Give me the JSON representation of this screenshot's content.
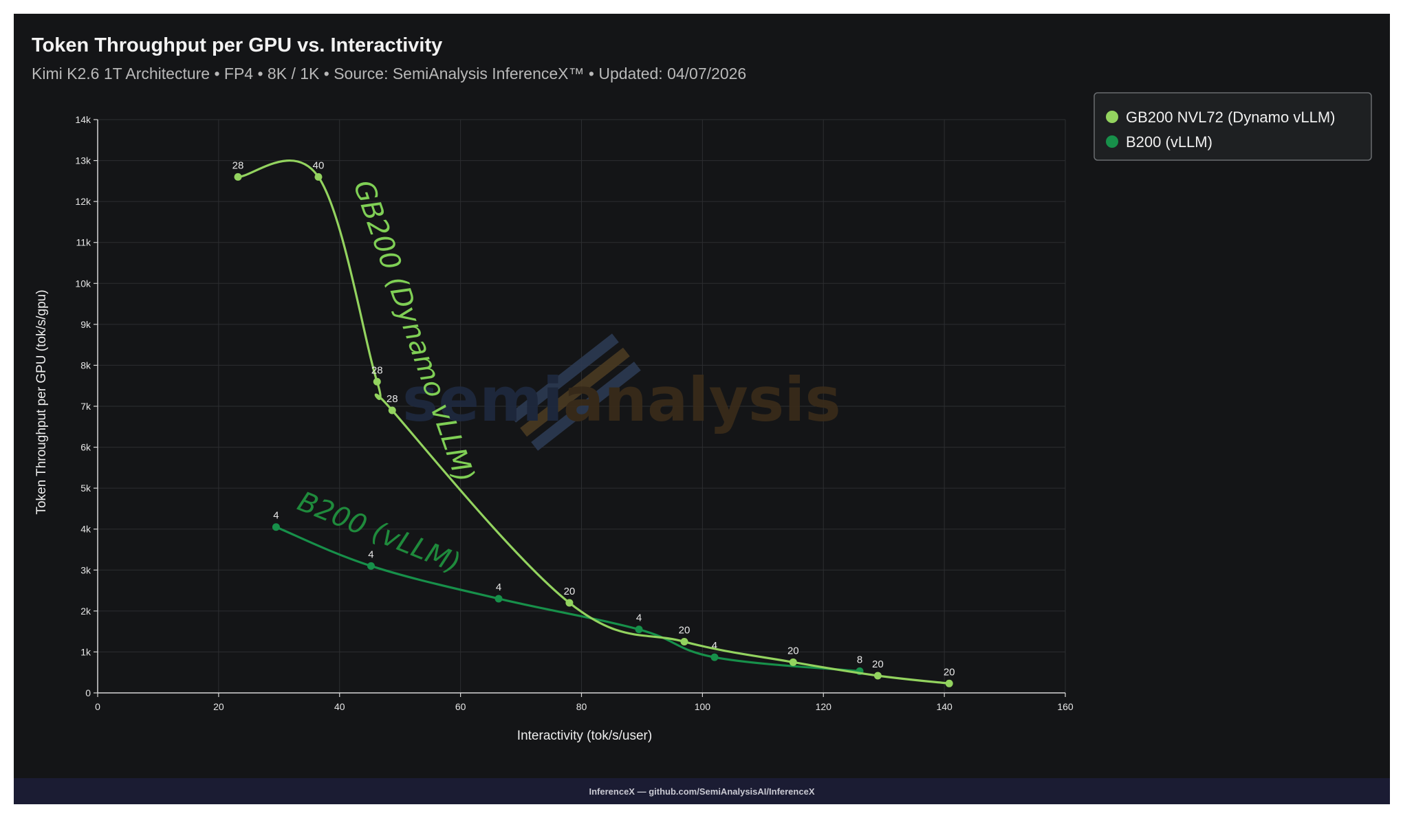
{
  "header": {
    "title": "Token Throughput per GPU vs. Interactivity",
    "subtitle": "Kimi K2.6 1T Architecture • FP4 • 8K / 1K • Source: SemiAnalysis InferenceX™ • Updated: 04/07/2026"
  },
  "footer": {
    "text": "InferenceX — github.com/SemiAnalysisAI/InferenceX"
  },
  "watermark": {
    "text_a": "semi",
    "text_b": "analysis"
  },
  "annotations": [
    {
      "text": "GB200 (Dynamo vLLM)",
      "color": "#7fcf55"
    },
    {
      "text": "B200 (vLLM)",
      "color": "#1f8a3c"
    }
  ],
  "chart_data": {
    "type": "line",
    "title": "Token Throughput per GPU vs. Interactivity",
    "xlabel": "Interactivity (tok/s/user)",
    "ylabel": "Token Throughput per GPU (tok/s/gpu)",
    "xlim": [
      0,
      160
    ],
    "ylim": [
      0,
      14000
    ],
    "xticks": [
      0,
      20,
      40,
      60,
      80,
      100,
      120,
      140,
      160
    ],
    "yticks": [
      0,
      1000,
      2000,
      3000,
      4000,
      5000,
      6000,
      7000,
      8000,
      9000,
      10000,
      11000,
      12000,
      13000,
      14000
    ],
    "ytick_labels": [
      "0",
      "1k",
      "2k",
      "3k",
      "4k",
      "5k",
      "6k",
      "7k",
      "8k",
      "9k",
      "10k",
      "11k",
      "12k",
      "13k",
      "14k"
    ],
    "grid": true,
    "legend_position": "top-right, outside plot",
    "series": [
      {
        "name": "GB200 NVL72 (Dynamo vLLM)",
        "color": "#93d35f",
        "points": [
          {
            "x": 23.2,
            "y": 12600,
            "label": "28"
          },
          {
            "x": 36.5,
            "y": 12600,
            "label": "40"
          },
          {
            "x": 46.2,
            "y": 7600,
            "label": "28"
          },
          {
            "x": 48.7,
            "y": 6900,
            "label": "28"
          },
          {
            "x": 78.0,
            "y": 2200,
            "label": "20"
          },
          {
            "x": 97.0,
            "y": 1250,
            "label": "20"
          },
          {
            "x": 115.0,
            "y": 750,
            "label": "20"
          },
          {
            "x": 129.0,
            "y": 420,
            "label": "20"
          },
          {
            "x": 140.8,
            "y": 230,
            "label": "20"
          }
        ]
      },
      {
        "name": "B200 (vLLM)",
        "color": "#17904a",
        "points": [
          {
            "x": 29.5,
            "y": 4050,
            "label": "4"
          },
          {
            "x": 45.2,
            "y": 3100,
            "label": "4"
          },
          {
            "x": 66.3,
            "y": 2300,
            "label": "4"
          },
          {
            "x": 89.5,
            "y": 1550,
            "label": "4"
          },
          {
            "x": 102.0,
            "y": 870,
            "label": "4"
          },
          {
            "x": 126.0,
            "y": 530,
            "label": "8"
          }
        ]
      }
    ]
  }
}
